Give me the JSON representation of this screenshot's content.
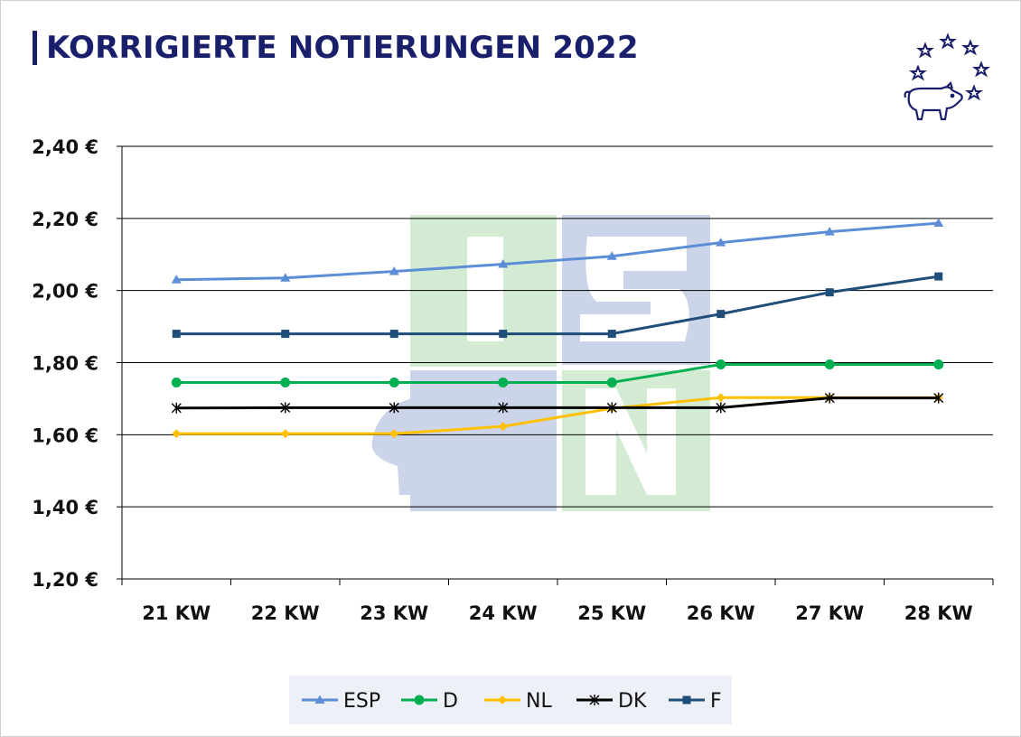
{
  "title": "KORRIGIERTE NOTIERUNGEN 2022",
  "colors": {
    "title": "#1a1f6b",
    "grid": "#000000",
    "watermark_green": "#d3ead3",
    "watermark_blue": "#ccd4ea"
  },
  "chart_data": {
    "type": "line",
    "title": "",
    "xlabel": "",
    "ylabel": "",
    "categories": [
      "21 KW",
      "22 KW",
      "23 KW",
      "24 KW",
      "25 KW",
      "26 KW",
      "27 KW",
      "28 KW"
    ],
    "ylim": [
      1.2,
      2.4
    ],
    "yticks": [
      "2,40 €",
      "2,20 €",
      "2,00 €",
      "1,80 €",
      "1,60 €",
      "1,40 €",
      "1,20 €"
    ],
    "grid": true,
    "legend_position": "bottom",
    "series": [
      {
        "name": "ESP",
        "color": "#5b8ed6",
        "marker": "triangle",
        "values": [
          2.03,
          2.035,
          2.053,
          2.073,
          2.095,
          2.133,
          2.163,
          2.187
        ]
      },
      {
        "name": "D",
        "color": "#00b050",
        "marker": "circle",
        "values": [
          1.745,
          1.745,
          1.745,
          1.745,
          1.745,
          1.795,
          1.795,
          1.795
        ]
      },
      {
        "name": "NL",
        "color": "#ffc000",
        "marker": "diamond",
        "values": [
          1.603,
          1.603,
          1.603,
          1.623,
          1.673,
          1.703,
          1.703,
          1.703
        ]
      },
      {
        "name": "DK",
        "color": "#000000",
        "marker": "star",
        "values": [
          1.674,
          1.675,
          1.675,
          1.675,
          1.675,
          1.675,
          1.702,
          1.702
        ]
      },
      {
        "name": "F",
        "color": "#1f4e79",
        "marker": "square",
        "values": [
          1.88,
          1.88,
          1.88,
          1.88,
          1.88,
          1.935,
          1.995,
          2.039
        ]
      }
    ]
  }
}
